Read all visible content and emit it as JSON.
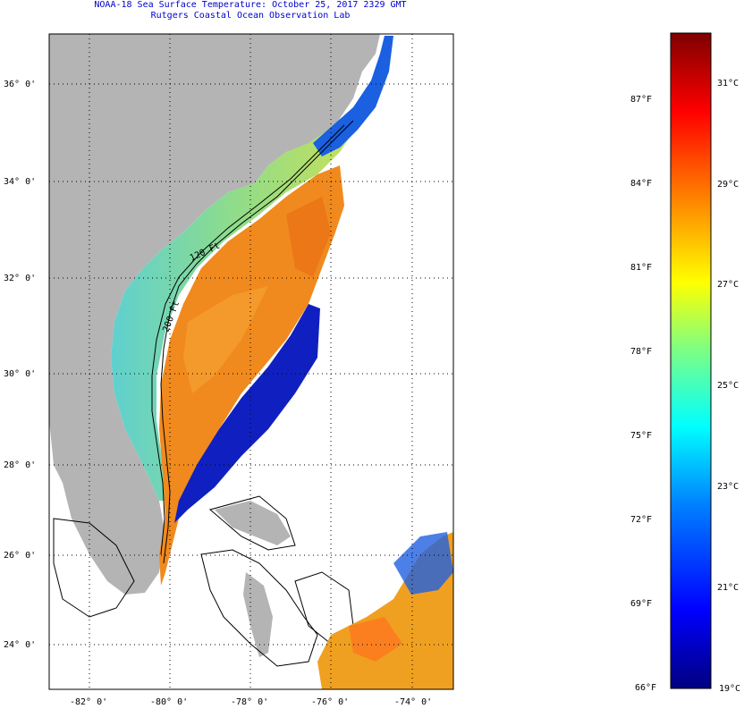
{
  "title": {
    "line1": "NOAA-18 Sea Surface Temperature:  October 25, 2017 2329 GMT",
    "line2": "Rutgers Coastal Ocean Observation Lab"
  },
  "map": {
    "lat_ticks": [
      "36° 0'",
      "34° 0'",
      "32° 0'",
      "30° 0'",
      "28° 0'",
      "26° 0'",
      "24° 0'"
    ],
    "lon_ticks": [
      "-82° 0'",
      "-80° 0'",
      "-78° 0'",
      "-76° 0'",
      "-74° 0'"
    ],
    "contour_labels": [
      "120 Ft",
      "200 Ft"
    ],
    "colors": {
      "land": "#b4b4b4",
      "ocean": "#ffffff",
      "frame": "#000000"
    }
  },
  "colorbar": {
    "f_labels": [
      "87°F",
      "84°F",
      "81°F",
      "78°F",
      "75°F",
      "72°F",
      "69°F",
      "66°F"
    ],
    "c_labels": [
      "31°C",
      "29°C",
      "27°C",
      "25°C",
      "23°C",
      "21°C",
      "19°C"
    ],
    "gradient": [
      "#00007f",
      "#0000ff",
      "#0080ff",
      "#00ffff",
      "#80ff80",
      "#ffff00",
      "#ff8000",
      "#ff0000",
      "#7f0000"
    ]
  }
}
